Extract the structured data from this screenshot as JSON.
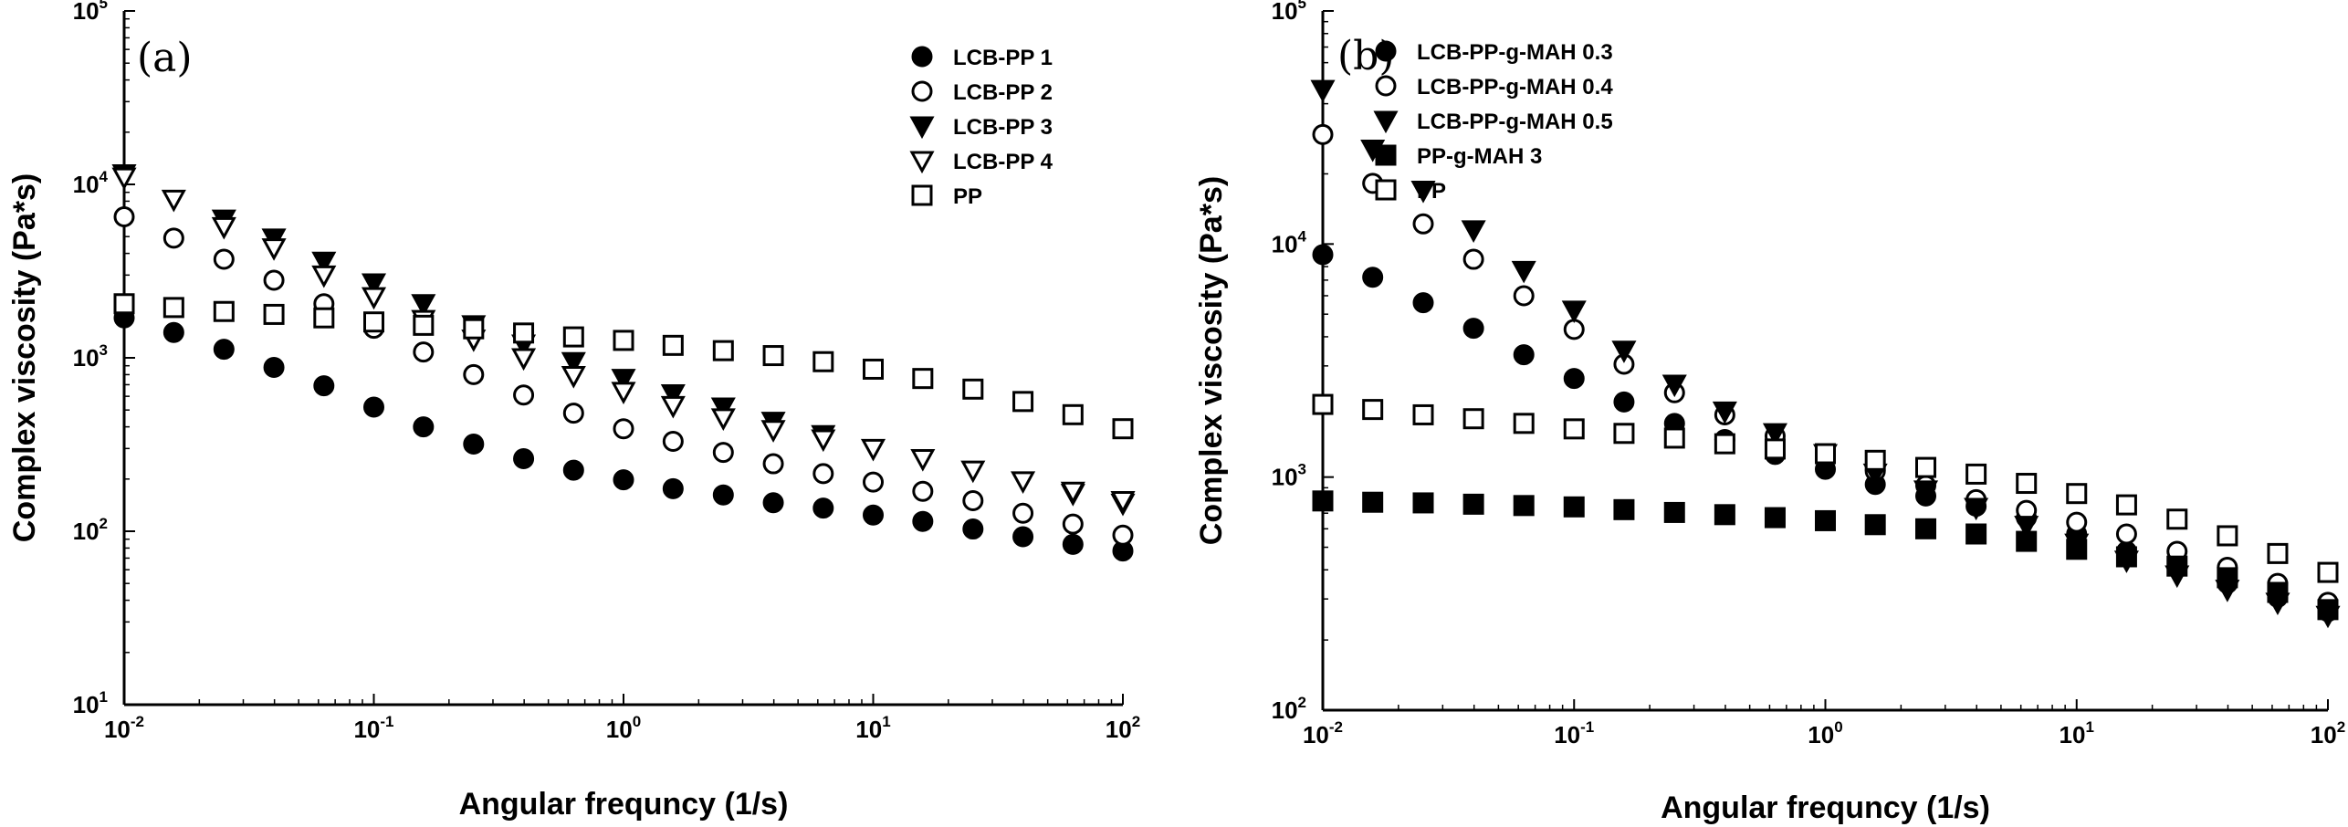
{
  "chart_data": [
    {
      "type": "scatter",
      "panel_label": "(a)",
      "xlabel": "Angular frequncy (1/s)",
      "ylabel": "Complex viscosity (Pa*s)",
      "xscale": "log",
      "yscale": "log",
      "xlim": [
        0.01,
        100
      ],
      "ylim": [
        10,
        100000
      ],
      "x_ticks": [
        {
          "base": "10",
          "exp": "-2"
        },
        {
          "base": "10",
          "exp": "-1"
        },
        {
          "base": "10",
          "exp": "0"
        },
        {
          "base": "10",
          "exp": "1"
        },
        {
          "base": "10",
          "exp": "2"
        }
      ],
      "y_ticks": [
        {
          "base": "10",
          "exp": "1"
        },
        {
          "base": "10",
          "exp": "2"
        },
        {
          "base": "10",
          "exp": "3"
        },
        {
          "base": "10",
          "exp": "4"
        },
        {
          "base": "10",
          "exp": "5"
        }
      ],
      "legend_position": "top-right",
      "grid": false,
      "x": [
        0.01,
        0.0158,
        0.0251,
        0.0398,
        0.0631,
        0.1,
        0.158,
        0.251,
        0.398,
        0.631,
        1,
        1.58,
        2.51,
        3.98,
        6.31,
        10,
        15.8,
        25.1,
        39.8,
        63.1,
        100
      ],
      "series": [
        {
          "name": "LCB-PP 1",
          "marker": "circle-filled",
          "values": [
            1700,
            1400,
            1120,
            880,
            690,
            520,
            400,
            318,
            262,
            225,
            198,
            176,
            162,
            146,
            136,
            124,
            114,
            103,
            93,
            84,
            77
          ]
        },
        {
          "name": "LCB-PP 2",
          "marker": "circle-open",
          "values": [
            6500,
            4900,
            3700,
            2800,
            2050,
            1480,
            1080,
            800,
            610,
            480,
            390,
            330,
            285,
            245,
            215,
            192,
            170,
            150,
            127,
            110,
            95
          ]
        },
        {
          "name": "LCB-PP 3",
          "marker": "triangle-down-filled",
          "values": [
            11500,
            null,
            6300,
            4900,
            3600,
            2700,
            2050,
            1550,
            1200,
            950,
            760,
            620,
            520,
            430,
            360,
            null,
            null,
            null,
            null,
            165,
            145
          ]
        },
        {
          "name": "LCB-PP 4",
          "marker": "triangle-down-open",
          "values": [
            11000,
            8200,
            5700,
            4300,
            3000,
            2250,
            1660,
            1280,
            1000,
            790,
            640,
            530,
            450,
            385,
            340,
            300,
            262,
            225,
            195,
            170,
            150
          ]
        },
        {
          "name": "PP",
          "marker": "square-open",
          "values": [
            2050,
            1950,
            1850,
            1780,
            1700,
            1610,
            1540,
            1470,
            1390,
            1320,
            1260,
            1180,
            1100,
            1030,
            950,
            860,
            760,
            660,
            560,
            470,
            390
          ]
        }
      ]
    },
    {
      "type": "scatter",
      "panel_label": "(b)",
      "xlabel": "Angular frequncy (1/s)",
      "ylabel": "Complex viscosity (Pa*s)",
      "xscale": "log",
      "yscale": "log",
      "xlim": [
        0.01,
        100
      ],
      "ylim": [
        100,
        100000
      ],
      "x_ticks": [
        {
          "base": "10",
          "exp": "-2"
        },
        {
          "base": "10",
          "exp": "-1"
        },
        {
          "base": "10",
          "exp": "0"
        },
        {
          "base": "10",
          "exp": "1"
        },
        {
          "base": "10",
          "exp": "2"
        }
      ],
      "y_ticks": [
        {
          "base": "10",
          "exp": "2"
        },
        {
          "base": "10",
          "exp": "3"
        },
        {
          "base": "10",
          "exp": "4"
        },
        {
          "base": "10",
          "exp": "5"
        }
      ],
      "legend_position": "top-right",
      "grid": false,
      "x": [
        0.01,
        0.0158,
        0.0251,
        0.0398,
        0.0631,
        0.1,
        0.158,
        0.251,
        0.398,
        0.631,
        1,
        1.58,
        2.51,
        3.98,
        6.31,
        10,
        15.8,
        25.1,
        39.8,
        63.1,
        100
      ],
      "series": [
        {
          "name": "LCB-PP-g-MAH 0.3",
          "marker": "circle-filled",
          "values": [
            9000,
            7200,
            5600,
            4350,
            3350,
            2650,
            2100,
            1700,
            1450,
            1250,
            1080,
            930,
            830,
            750,
            670,
            570,
            480,
            410,
            350,
            305,
            265
          ]
        },
        {
          "name": "LCB-PP-g-MAH 0.4",
          "marker": "circle-open",
          "values": [
            29500,
            18200,
            12200,
            8600,
            6000,
            4300,
            3050,
            2300,
            1850,
            1500,
            1240,
            1060,
            920,
            800,
            720,
            640,
            570,
            480,
            410,
            350,
            290
          ]
        },
        {
          "name": "LCB-PP-g-MAH 0.5",
          "marker": "triangle-down-filled",
          "values": [
            46000,
            25500,
            17000,
            11500,
            7700,
            5200,
            3500,
            2500,
            1920,
            1550,
            1260,
            1040,
            880,
            740,
            620,
            520,
            440,
            380,
            330,
            290,
            255
          ]
        },
        {
          "name": "PP-g-MAH 3",
          "marker": "square-filled",
          "values": [
            790,
            780,
            775,
            765,
            755,
            745,
            725,
            705,
            690,
            670,
            650,
            625,
            600,
            570,
            530,
            490,
            455,
            415,
            370,
            320,
            270
          ]
        },
        {
          "name": "PP",
          "marker": "square-open",
          "values": [
            2050,
            1950,
            1850,
            1780,
            1700,
            1610,
            1540,
            1470,
            1390,
            1320,
            1260,
            1180,
            1100,
            1030,
            940,
            850,
            760,
            660,
            560,
            470,
            390
          ]
        }
      ]
    }
  ]
}
